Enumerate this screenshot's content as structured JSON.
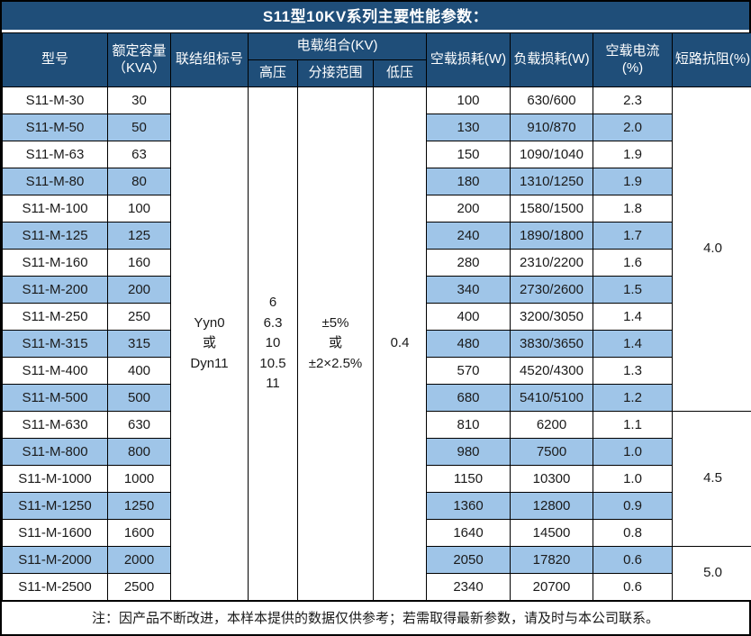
{
  "title": "S11型10KV系列主要性能参数：",
  "footer_note": "注：因产品不断改进，本样本提供的数据仅供参考；若需取得最新参数，请及时与本公司联系。",
  "colors": {
    "header_bg": "#1F4E79",
    "header_text": "#FFFFFF",
    "alt_row_bg": "#9FC5E8",
    "row_bg": "#FFFFFF",
    "border": "#000000"
  },
  "columns": {
    "model": "型号",
    "capacity_line1": "额定容量",
    "capacity_line2": "（KVA）",
    "connection": "联结组标号",
    "voltage_group": "电载组合(KV)",
    "hv": "高压",
    "tap_range": "分接范围",
    "lv": "低压",
    "no_load_loss": "空载损耗(W)",
    "load_loss": "负载损耗(W)",
    "no_load_current": "空载电流(%)",
    "impedance": "短路抗阻(%)"
  },
  "merged": {
    "connection": [
      "Yyn0",
      "或",
      "Dyn11"
    ],
    "hv": [
      "6",
      "6.3",
      "10",
      "10.5",
      "11"
    ],
    "tap_range": [
      "±5%",
      "或",
      "±2×2.5%"
    ],
    "lv": [
      "0.4"
    ]
  },
  "impedance_groups": [
    {
      "value": "4.0",
      "row_span": 12
    },
    {
      "value": "4.5",
      "row_span": 5
    },
    {
      "value": "5.0",
      "row_span": 2
    }
  ],
  "rows": [
    {
      "model": "S11-M-30",
      "capacity": "30",
      "no_load_loss": "100",
      "load_loss": "630/600",
      "no_load_current": "2.3"
    },
    {
      "model": "S11-M-50",
      "capacity": "50",
      "no_load_loss": "130",
      "load_loss": "910/870",
      "no_load_current": "2.0"
    },
    {
      "model": "S11-M-63",
      "capacity": "63",
      "no_load_loss": "150",
      "load_loss": "1090/1040",
      "no_load_current": "1.9"
    },
    {
      "model": "S11-M-80",
      "capacity": "80",
      "no_load_loss": "180",
      "load_loss": "1310/1250",
      "no_load_current": "1.9"
    },
    {
      "model": "S11-M-100",
      "capacity": "100",
      "no_load_loss": "200",
      "load_loss": "1580/1500",
      "no_load_current": "1.8"
    },
    {
      "model": "S11-M-125",
      "capacity": "125",
      "no_load_loss": "240",
      "load_loss": "1890/1800",
      "no_load_current": "1.7"
    },
    {
      "model": "S11-M-160",
      "capacity": "160",
      "no_load_loss": "280",
      "load_loss": "2310/2200",
      "no_load_current": "1.6"
    },
    {
      "model": "S11-M-200",
      "capacity": "200",
      "no_load_loss": "340",
      "load_loss": "2730/2600",
      "no_load_current": "1.5"
    },
    {
      "model": "S11-M-250",
      "capacity": "250",
      "no_load_loss": "400",
      "load_loss": "3200/3050",
      "no_load_current": "1.4"
    },
    {
      "model": "S11-M-315",
      "capacity": "315",
      "no_load_loss": "480",
      "load_loss": "3830/3650",
      "no_load_current": "1.4"
    },
    {
      "model": "S11-M-400",
      "capacity": "400",
      "no_load_loss": "570",
      "load_loss": "4520/4300",
      "no_load_current": "1.3"
    },
    {
      "model": "S11-M-500",
      "capacity": "500",
      "no_load_loss": "680",
      "load_loss": "5410/5100",
      "no_load_current": "1.2"
    },
    {
      "model": "S11-M-630",
      "capacity": "630",
      "no_load_loss": "810",
      "load_loss": "6200",
      "no_load_current": "1.1"
    },
    {
      "model": "S11-M-800",
      "capacity": "800",
      "no_load_loss": "980",
      "load_loss": "7500",
      "no_load_current": "1.0"
    },
    {
      "model": "S11-M-1000",
      "capacity": "1000",
      "no_load_loss": "1150",
      "load_loss": "10300",
      "no_load_current": "1.0"
    },
    {
      "model": "S11-M-1250",
      "capacity": "1250",
      "no_load_loss": "1360",
      "load_loss": "12800",
      "no_load_current": "0.9"
    },
    {
      "model": "S11-M-1600",
      "capacity": "1600",
      "no_load_loss": "1640",
      "load_loss": "14500",
      "no_load_current": "0.8"
    },
    {
      "model": "S11-M-2000",
      "capacity": "2000",
      "no_load_loss": "2050",
      "load_loss": "17820",
      "no_load_current": "0.6"
    },
    {
      "model": "S11-M-2500",
      "capacity": "2500",
      "no_load_loss": "2340",
      "load_loss": "20700",
      "no_load_current": "0.6"
    }
  ]
}
